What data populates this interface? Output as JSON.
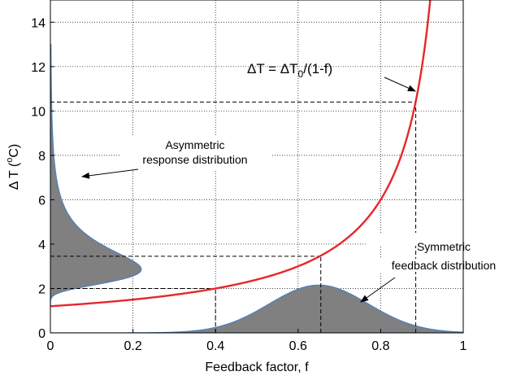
{
  "chart_data": {
    "type": "line",
    "xlabel": "Feedback factor, f",
    "ylabel_parts": [
      "Δ T (",
      "o",
      "C)"
    ],
    "xlim": [
      0,
      1
    ],
    "ylim": [
      0,
      15
    ],
    "xticks": [
      0,
      0.2,
      0.4,
      0.6,
      0.8,
      1
    ],
    "xtick_labels": [
      "0",
      "0.2",
      "0.4",
      "0.6",
      "0.8",
      "1"
    ],
    "yticks": [
      0,
      2,
      4,
      6,
      8,
      10,
      12,
      14
    ],
    "ytick_labels": [
      "0",
      "2",
      "4",
      "6",
      "8",
      "10",
      "12",
      "14"
    ],
    "grid": true,
    "series": [
      {
        "name": "ΔT = ΔT0/(1-f)",
        "color": "#e8262b",
        "formula": "1.2/(1-f)",
        "dT0": 1.2
      }
    ],
    "feedback_distribution": {
      "kind": "gaussian",
      "mean": 0.65,
      "sd": 0.12,
      "peak_height": 2.15,
      "color": "#808080"
    },
    "response_distribution": {
      "kind": "derived",
      "peak_width": 0.22,
      "color": "#808080"
    },
    "guide_lines": [
      {
        "f": 0.4,
        "dT": 2.0
      },
      {
        "f": 0.655,
        "dT": 3.45
      },
      {
        "f": 0.885,
        "dT": 10.4
      }
    ],
    "annotations": {
      "equation": [
        "ΔT = ΔT",
        "0",
        "/(1-f)"
      ],
      "asymmetric_line1": "Asymmetric",
      "asymmetric_line2": "response distribution",
      "symmetric_line1": "Symmetric",
      "symmetric_line2": "feedback distribution"
    }
  }
}
